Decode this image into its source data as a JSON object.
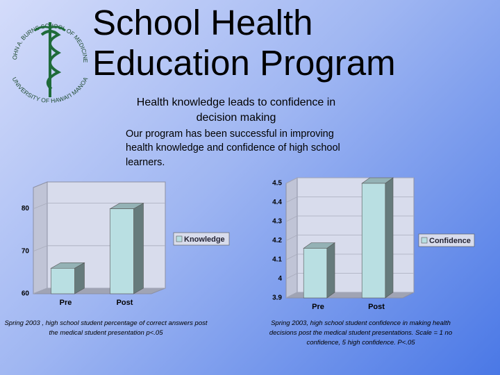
{
  "slide": {
    "title": "School Health Education Program",
    "subtitle": "Health knowledge leads to confidence in decision making",
    "body": "Our program has been successful in improving health knowledge and confidence of high school learners.",
    "logo": {
      "top": "JOHN A. BURNS SCHOOL OF MEDICINE",
      "bottom": "UNIVERSITY OF HAWAI'I MANOA"
    }
  },
  "chart_data": [
    {
      "type": "bar",
      "categories": [
        "Pre",
        "Post"
      ],
      "series": [
        {
          "name": "Knowledge",
          "color": "#b9dfe2",
          "values": [
            66,
            80
          ]
        }
      ],
      "ylim": [
        60,
        85
      ],
      "yticks": [
        60,
        70,
        80
      ],
      "caption": "Spring 2003 , high school student percentage of correct answers post the medical student presentation p<.05"
    },
    {
      "type": "bar",
      "categories": [
        "Pre",
        "Post"
      ],
      "series": [
        {
          "name": "Confidence",
          "color": "#b9dfe2",
          "values": [
            4.16,
            4.5
          ]
        }
      ],
      "ylim": [
        3.9,
        4.5
      ],
      "yticks": [
        3.9,
        4,
        4.1,
        4.2,
        4.3,
        4.4,
        4.5
      ],
      "caption": "Spring 2003, high school student confidence in making health decisions post the medical student presentations.  Scale = 1 no confidence, 5 high confidence. P<.05"
    }
  ]
}
